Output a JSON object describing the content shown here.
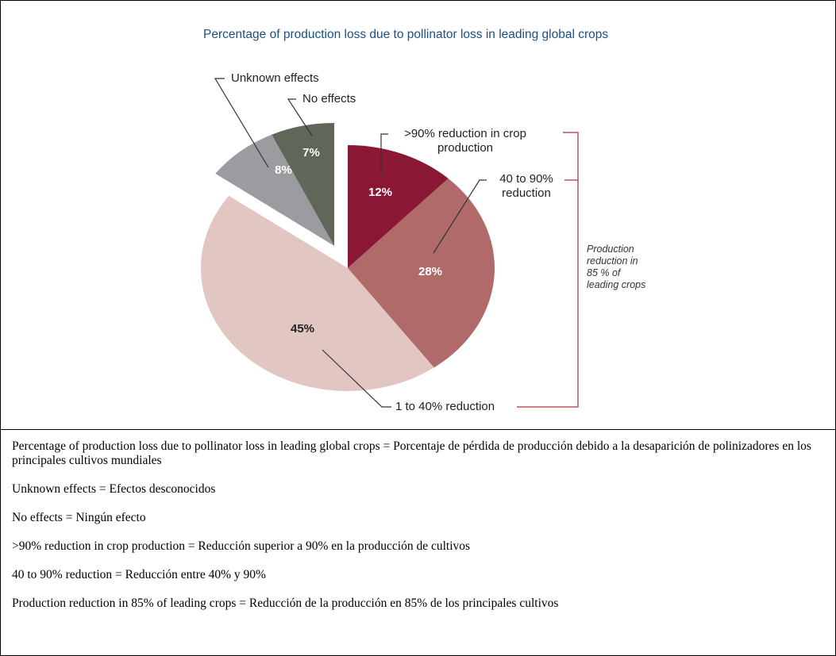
{
  "chart_data": {
    "type": "pie",
    "title": "Percentage of production loss due to pollinator loss in leading global crops",
    "categories": [
      ">90% reduction in crop production",
      "40 to 90% reduction",
      "1 to 40% reduction",
      "Unknown effects",
      "No effects"
    ],
    "values": [
      12,
      28,
      45,
      8,
      7
    ],
    "value_labels": [
      "12%",
      "28%",
      "45%",
      "8%",
      "7%"
    ],
    "colors": [
      "#8a1834",
      "#b06a6a",
      "#e2c6c2",
      "#9c9ca0",
      "#5f675b"
    ],
    "explode": [
      false,
      false,
      false,
      true,
      true
    ],
    "annotation": "Production reduction in 85 % of leading crops"
  },
  "translations": [
    "Percentage of production loss due to pollinator loss in leading global crops = Porcentaje de pérdida de producción debido a la desaparición de polinizadores en los principales cultivos mundiales",
    "Unknown effects = Efectos desconocidos",
    "No effects = Ningún efecto",
    ">90% reduction in crop production = Reducción superior a 90% en la producción de cultivos",
    "40 to 90% reduction = Reducción entre 40% y 90%",
    "Production reduction in 85% of leading crops = Reducción de la producción en 85% de los principales cultivos"
  ]
}
